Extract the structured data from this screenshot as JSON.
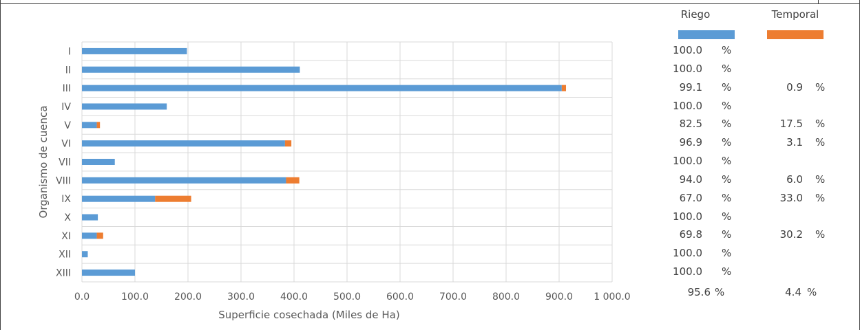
{
  "chart_data": {
    "type": "bar",
    "orientation": "horizontal",
    "stacked": true,
    "categories": [
      "I",
      "II",
      "III",
      "IV",
      "V",
      "VI",
      "VII",
      "VIII",
      "IX",
      "X",
      "XI",
      "XII",
      "XIII"
    ],
    "series": [
      {
        "name": "Riego",
        "color": "#5B9BD5",
        "values": [
          198,
          411,
          905,
          160,
          28,
          383,
          62,
          385,
          138,
          30,
          28,
          11,
          100
        ]
      },
      {
        "name": "Temporal",
        "color": "#ED7D31",
        "values": [
          0,
          0,
          8,
          0,
          6,
          12,
          0,
          25,
          68,
          0,
          12,
          0,
          0
        ]
      }
    ],
    "xlabel": "Superficie cosechada (Miles de Ha)",
    "ylabel": "Organismo de cuenca",
    "xlim": [
      0,
      1000
    ],
    "xticks": [
      "0.0",
      "100.0",
      "200.0",
      "300.0",
      "400.0",
      "500.0",
      "600.0",
      "700.0",
      "800.0",
      "900.0",
      "1 000.0"
    ],
    "grid": true,
    "legend": "right"
  },
  "side_table": {
    "headers": [
      "Riego",
      "Temporal"
    ],
    "percent_sign": "%",
    "rows": [
      {
        "riego": "100.0",
        "temporal": ""
      },
      {
        "riego": "100.0",
        "temporal": ""
      },
      {
        "riego": "99.1",
        "temporal": "0.9"
      },
      {
        "riego": "100.0",
        "temporal": ""
      },
      {
        "riego": "82.5",
        "temporal": "17.5"
      },
      {
        "riego": "96.9",
        "temporal": "3.1"
      },
      {
        "riego": "100.0",
        "temporal": ""
      },
      {
        "riego": "94.0",
        "temporal": "6.0"
      },
      {
        "riego": "67.0",
        "temporal": "33.0"
      },
      {
        "riego": "100.0",
        "temporal": ""
      },
      {
        "riego": "69.8",
        "temporal": "30.2"
      },
      {
        "riego": "100.0",
        "temporal": ""
      },
      {
        "riego": "100.0",
        "temporal": ""
      }
    ],
    "total": {
      "riego": "95.6",
      "temporal": "4.4"
    }
  }
}
